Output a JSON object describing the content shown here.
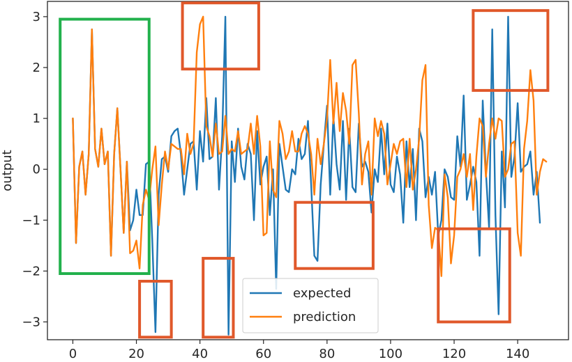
{
  "chart_data": {
    "type": "line",
    "ylabel": "output",
    "xlabel": "",
    "xlim": [
      -8,
      156
    ],
    "ylim": [
      -3.35,
      3.3
    ],
    "x_ticks": [
      0,
      20,
      40,
      60,
      80,
      100,
      120,
      140
    ],
    "y_ticks": [
      -3,
      -2,
      -1,
      0,
      1,
      2,
      3
    ],
    "x_tick_labels": [
      "0",
      "20",
      "40",
      "60",
      "80",
      "100",
      "120",
      "140"
    ],
    "y_tick_labels": [
      "−3",
      "−2",
      "−1",
      "0",
      "1",
      "2",
      "3"
    ],
    "grid": false,
    "legend_position": "bottom-center",
    "series": [
      {
        "name": "expected",
        "color": "#1f77b4",
        "values": [
          1.0,
          -1.45,
          0.05,
          0.35,
          -0.5,
          0.3,
          2.75,
          0.4,
          0.05,
          0.8,
          0.1,
          0.35,
          -1.7,
          0.3,
          1.2,
          0.0,
          -1.25,
          0.15,
          -1.2,
          -1.0,
          -0.4,
          -0.9,
          -0.9,
          0.1,
          0.15,
          -1.4,
          -3.2,
          -0.5,
          0.2,
          0.25,
          -0.05,
          0.65,
          0.75,
          0.8,
          0.3,
          -0.5,
          0.0,
          0.5,
          0.55,
          -0.4,
          0.75,
          0.15,
          1.4,
          0.2,
          0.25,
          1.4,
          -0.4,
          0.65,
          3.0,
          -3.25,
          0.55,
          -0.25,
          0.8,
          0.05,
          -0.2,
          0.5,
          0.3,
          -1.0,
          0.75,
          -0.3,
          0.05,
          0.25,
          -0.9,
          0.0,
          -2.35,
          0.5,
          0.05,
          -0.4,
          -0.45,
          0.0,
          -0.1,
          0.6,
          0.2,
          0.3,
          0.95,
          -0.3,
          -1.7,
          -1.8,
          -0.3,
          0.5,
          1.25,
          -0.5,
          1.05,
          0.1,
          -0.4,
          0.95,
          -0.6,
          0.8,
          -0.35,
          -0.45,
          0.9,
          0.05,
          0.15,
          -0.05,
          -0.85,
          0.0,
          -0.25,
          0.8,
          -0.1,
          0.9,
          -0.3,
          -0.45,
          0.25,
          -0.1,
          -1.05,
          0.55,
          -0.35,
          0.4,
          -1.0,
          0.8,
          0.55,
          -0.55,
          -0.15,
          -0.5,
          -0.05,
          -1.3,
          -1.0,
          0.0,
          -0.15,
          -0.55,
          -0.6,
          0.65,
          0.05,
          1.45,
          -0.6,
          -0.3,
          0.05,
          -0.25,
          -1.7,
          1.35,
          -0.05,
          -1.15,
          2.75,
          -0.9,
          -2.85,
          0.35,
          -0.75,
          3.0,
          -0.15,
          0.25,
          1.3,
          -0.05,
          0.05,
          0.1,
          0.35,
          -0.5,
          -0.05,
          -1.05
        ]
      },
      {
        "name": "prediction",
        "color": "#ff7f0e",
        "values": [
          1.0,
          -1.45,
          0.05,
          0.35,
          -0.5,
          0.3,
          2.75,
          0.4,
          0.05,
          0.8,
          0.1,
          0.35,
          -1.7,
          0.3,
          1.2,
          0.0,
          -1.25,
          0.15,
          -1.65,
          -1.6,
          -1.4,
          -1.95,
          -0.7,
          -0.4,
          -0.6,
          0.0,
          0.45,
          -1.1,
          -0.3,
          0.35,
          0.0,
          0.5,
          0.45,
          0.4,
          0.4,
          -0.1,
          0.7,
          0.3,
          0.5,
          2.3,
          2.85,
          3.0,
          0.85,
          0.65,
          0.25,
          0.9,
          0.3,
          0.35,
          1.05,
          0.3,
          0.4,
          0.35,
          0.75,
          0.3,
          0.35,
          0.4,
          0.9,
          0.3,
          1.05,
          0.45,
          -1.3,
          -1.25,
          0.55,
          -0.4,
          -0.55,
          0.95,
          0.7,
          0.2,
          0.35,
          0.75,
          0.35,
          0.35,
          0.7,
          0.85,
          0.7,
          0.3,
          -0.5,
          0.6,
          0.1,
          0.5,
          1.0,
          2.15,
          0.9,
          1.7,
          0.75,
          1.5,
          1.15,
          0.5,
          2.05,
          2.15,
          1.1,
          -0.3,
          0.3,
          0.55,
          -0.5,
          1.0,
          0.65,
          0.95,
          0.7,
          -0.3,
          0.1,
          0.5,
          0.3,
          0.55,
          0.6,
          -0.35,
          0.6,
          -0.4,
          0.0,
          0.6,
          1.75,
          2.05,
          -0.7,
          -1.55,
          -1.15,
          -1.2,
          -2.1,
          -0.1,
          -0.55,
          -1.85,
          -1.3,
          -0.15,
          0.0,
          0.3,
          -0.15,
          0.3,
          -0.8,
          0.25,
          1.0,
          0.85,
          -0.15,
          0.5,
          1.0,
          0.6,
          1.0,
          0.95,
          -0.15,
          0.0,
          0.5,
          0.55,
          -1.25,
          -1.7,
          0.4,
          0.95,
          1.95,
          1.35,
          -0.5,
          -0.05,
          0.2,
          0.15
        ]
      }
    ],
    "legend": {
      "entries": [
        "expected",
        "prediction"
      ]
    },
    "annotation_boxes": [
      {
        "color": "#22b14c",
        "x_range": [
          -4,
          24
        ],
        "y_range": [
          -2.05,
          2.95
        ]
      },
      {
        "color": "#e0582a",
        "x_range": [
          21,
          31
        ],
        "y_range": [
          -3.3,
          -2.2
        ]
      },
      {
        "color": "#e0582a",
        "x_range": [
          34.5,
          58.5
        ],
        "y_range": [
          1.97,
          3.27
        ]
      },
      {
        "color": "#e0582a",
        "x_range": [
          41,
          50.5
        ],
        "y_range": [
          -3.3,
          -1.75
        ]
      },
      {
        "color": "#e0582a",
        "x_range": [
          70,
          94.5
        ],
        "y_range": [
          -1.95,
          -0.65
        ]
      },
      {
        "color": "#e0582a",
        "x_range": [
          115,
          137.5
        ],
        "y_range": [
          -3.0,
          -1.17
        ]
      },
      {
        "color": "#e0582a",
        "x_range": [
          126,
          149.5
        ],
        "y_range": [
          1.55,
          3.12
        ]
      }
    ]
  }
}
